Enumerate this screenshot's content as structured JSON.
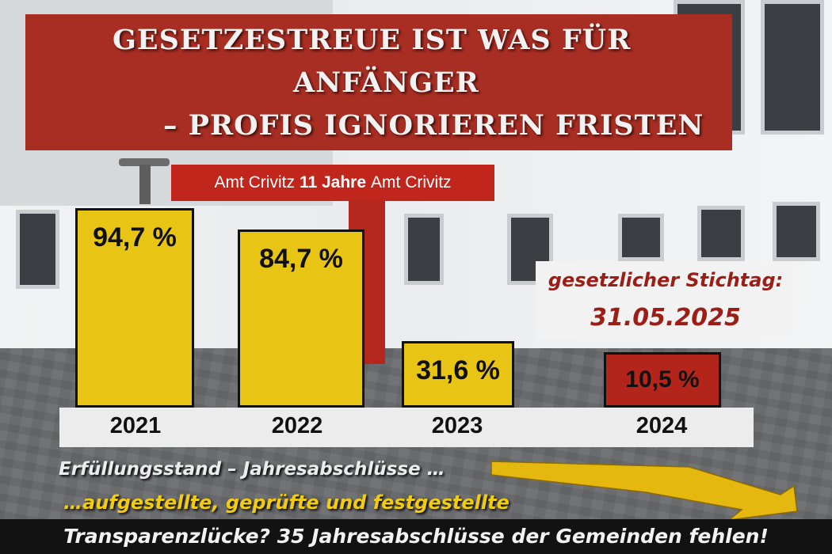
{
  "title": {
    "line1": "GESETZESTREUE IST WAS FÜR",
    "line2": "ANFÄNGER",
    "line3": "– PROFIS IGNORIEREN FRISTEN"
  },
  "sign": {
    "left": "Amt Crivitz",
    "middle": "11 Jahre",
    "right": "Amt Crivitz"
  },
  "stichtag": {
    "label": "gesetzlicher Stichtag:",
    "date": "31.05.2025"
  },
  "footer": {
    "line1": "Erfüllungsstand – Jahresabschlüsse …",
    "line2": "…aufgestellte, geprüfte und festgestellte",
    "line3": "Transparenzlücke? 35 Jahresabschlüsse der Gemeinden fehlen!"
  },
  "colors": {
    "bar_yellow": "#e8c514",
    "bar_red": "#b3241a",
    "title_red": "#a82e23",
    "footer_yellow": "#f2cc10"
  },
  "chart_data": {
    "type": "bar",
    "categories": [
      "2021",
      "2022",
      "2023",
      "2024"
    ],
    "values": [
      94.7,
      84.7,
      31.6,
      10.5
    ],
    "labels": [
      "94,7 %",
      "84,7 %",
      "31,6 %",
      "10,5 %"
    ],
    "bar_colors": [
      "yellow",
      "yellow",
      "yellow",
      "red"
    ],
    "title": "",
    "xlabel": "",
    "ylabel": "",
    "ylim": [
      0,
      100
    ],
    "grid": false
  }
}
